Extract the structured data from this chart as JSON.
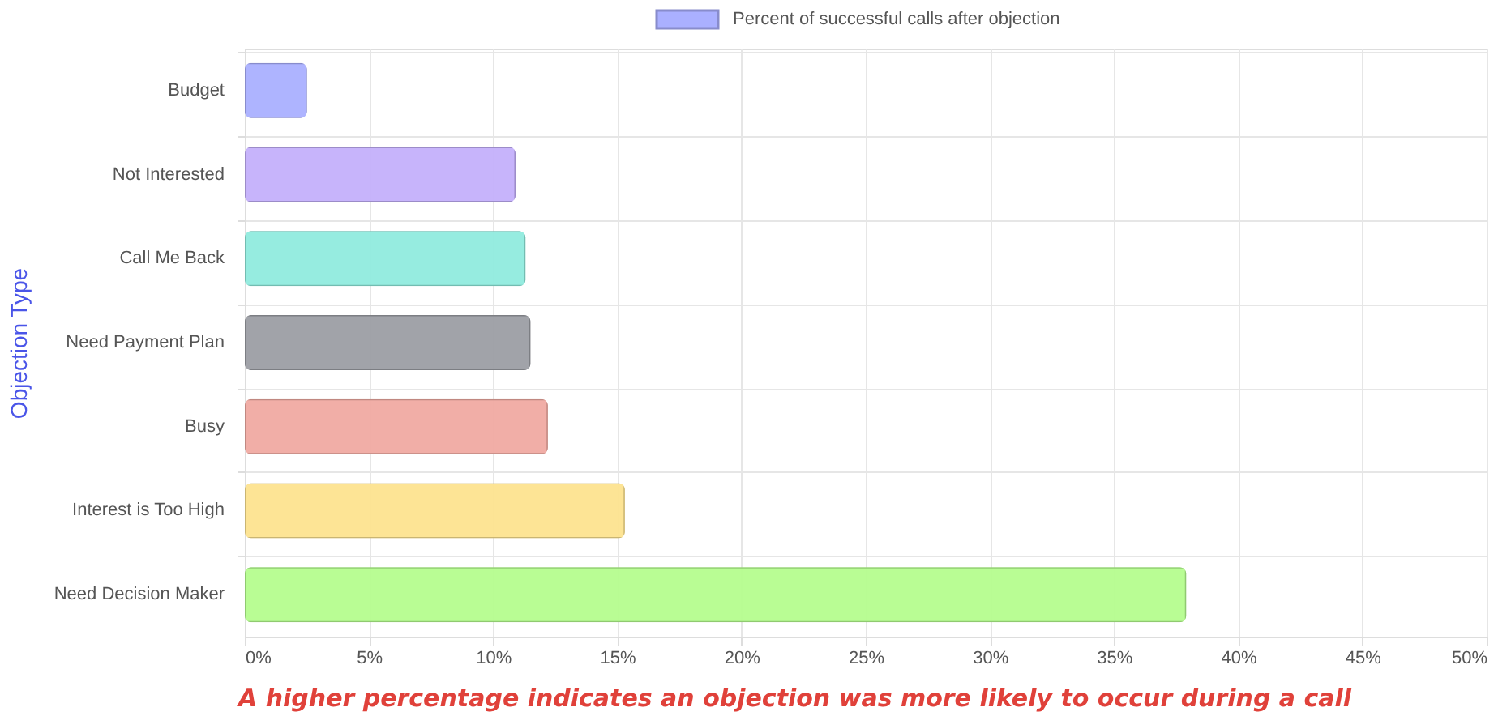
{
  "chart_data": {
    "type": "bar",
    "orientation": "horizontal",
    "ylabel": "Objection Type",
    "categories": [
      "Budget",
      "Not Interested",
      "Call Me Back",
      "Need Payment Plan",
      "Busy",
      "Interest is Too High",
      "Need Decision Maker"
    ],
    "series": [
      {
        "name": "Percent of successful calls after objection",
        "color": "#aab0ff",
        "values": [
          2.5,
          10.9,
          11.3,
          11.5,
          12.2,
          15.3,
          37.9
        ],
        "colors": [
          "#aab0ff",
          "#c4b0fb",
          "#90ebde",
          "#9c9ea4",
          "#f0aaa2",
          "#fde38f",
          "#b5fd8e"
        ]
      }
    ],
    "xlim": [
      0,
      50
    ],
    "xticks": [
      {
        "value": 0,
        "label": "0%"
      },
      {
        "value": 5,
        "label": "5%"
      },
      {
        "value": 10,
        "label": "10%"
      },
      {
        "value": 15,
        "label": "15%"
      },
      {
        "value": 20,
        "label": "20%"
      },
      {
        "value": 25,
        "label": "25%"
      },
      {
        "value": 30,
        "label": "30%"
      },
      {
        "value": 35,
        "label": "35%"
      },
      {
        "value": 40,
        "label": "40%"
      },
      {
        "value": 45,
        "label": "45%"
      },
      {
        "value": 50,
        "label": "50%"
      }
    ],
    "grid": true,
    "legend": "top",
    "annotations": [
      "A higher percentage indicates an objection was more likely to occur during a call"
    ]
  }
}
